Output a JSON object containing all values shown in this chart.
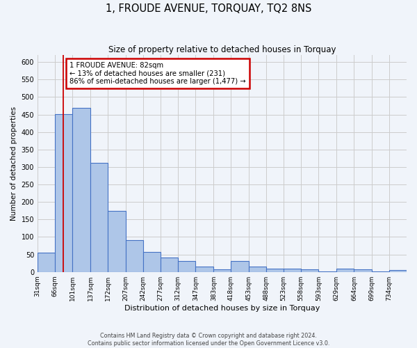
{
  "title": "1, FROUDE AVENUE, TORQUAY, TQ2 8NS",
  "subtitle": "Size of property relative to detached houses in Torquay",
  "xlabel": "Distribution of detached houses by size in Torquay",
  "ylabel": "Number of detached properties",
  "bin_labels": [
    "31sqm",
    "66sqm",
    "101sqm",
    "137sqm",
    "172sqm",
    "207sqm",
    "242sqm",
    "277sqm",
    "312sqm",
    "347sqm",
    "383sqm",
    "418sqm",
    "453sqm",
    "488sqm",
    "523sqm",
    "558sqm",
    "593sqm",
    "629sqm",
    "664sqm",
    "699sqm",
    "734sqm"
  ],
  "bin_edges": [
    31,
    66,
    101,
    137,
    172,
    207,
    242,
    277,
    312,
    347,
    383,
    418,
    453,
    488,
    523,
    558,
    593,
    629,
    664,
    699,
    734,
    769
  ],
  "bar_heights": [
    55,
    451,
    470,
    311,
    175,
    90,
    58,
    41,
    31,
    16,
    8,
    31,
    16,
    10,
    9,
    8,
    2,
    9,
    8,
    2,
    5
  ],
  "bar_color": "#aec6e8",
  "bar_edge_color": "#4472c4",
  "bar_edge_width": 0.8,
  "red_line_x": 82,
  "annotation_text": "1 FROUDE AVENUE: 82sqm\n← 13% of detached houses are smaller (231)\n86% of semi-detached houses are larger (1,477) →",
  "annotation_box_color": "#ffffff",
  "annotation_box_edge_color": "#cc0000",
  "ylim": [
    0,
    620
  ],
  "yticks": [
    0,
    50,
    100,
    150,
    200,
    250,
    300,
    350,
    400,
    450,
    500,
    550,
    600
  ],
  "grid_color": "#cccccc",
  "background_color": "#f0f4fa",
  "footer_line1": "Contains HM Land Registry data © Crown copyright and database right 2024.",
  "footer_line2": "Contains public sector information licensed under the Open Government Licence v3.0."
}
